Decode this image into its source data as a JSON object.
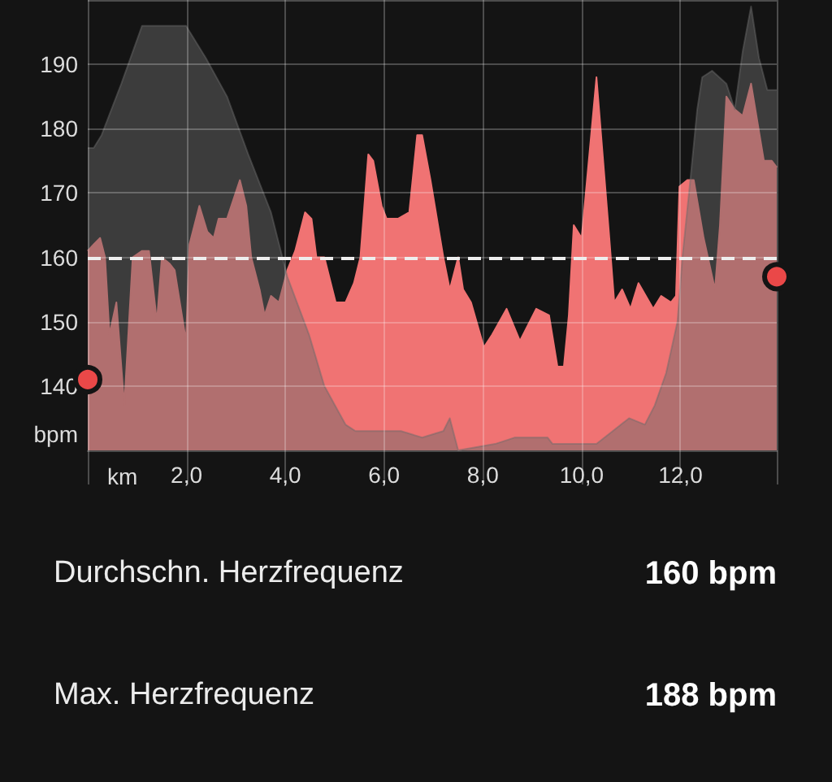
{
  "chart_data": {
    "type": "area",
    "xlabel": "km",
    "ylabel": "bpm",
    "xlim": [
      0,
      13.95
    ],
    "xticks": [
      {
        "value": 0,
        "label": null
      },
      {
        "value": 2,
        "label": "2,0"
      },
      {
        "value": 4,
        "label": "4,0"
      },
      {
        "value": 6,
        "label": "6,0"
      },
      {
        "value": 8,
        "label": "8,0"
      },
      {
        "value": 10,
        "label": "10,0"
      },
      {
        "value": 12,
        "label": "12,0"
      },
      {
        "value": 13.95,
        "label": null
      }
    ],
    "ylim": [
      130,
      200
    ],
    "yticks": [
      140,
      150,
      160,
      170,
      180,
      190,
      {
        "value": 200,
        "label": null
      }
    ],
    "grid": true,
    "series": [
      {
        "type": "area",
        "color": "#f07373",
        "x": [
          0,
          0.12,
          0.25,
          0.35,
          0.44,
          0.58,
          0.74,
          0.91,
          1.1,
          1.24,
          1.4,
          1.5,
          1.66,
          1.76,
          1.99,
          2.06,
          2.26,
          2.42,
          2.55,
          2.65,
          2.82,
          3.08,
          3.21,
          3.31,
          3.48,
          3.58,
          3.71,
          3.87,
          4.04,
          4.2,
          4.4,
          4.53,
          4.63,
          4.79,
          5.02,
          5.22,
          5.39,
          5.52,
          5.68,
          5.78,
          5.95,
          6.05,
          6.28,
          6.51,
          6.67,
          6.77,
          6.94,
          7.2,
          7.33,
          7.5,
          7.6,
          7.76,
          8.02,
          8.19,
          8.48,
          8.75,
          9.08,
          9.34,
          9.51,
          9.64,
          9.74,
          9.84,
          10.0,
          10.3,
          10.56,
          10.66,
          10.82,
          10.99,
          11.15,
          11.45,
          11.61,
          11.81,
          11.91,
          11.98,
          12.14,
          12.27,
          12.47,
          12.7,
          12.8,
          12.93,
          13.1,
          13.26,
          13.43,
          13.69,
          13.85,
          13.95
        ],
        "values": [
          161,
          162,
          163,
          160,
          148,
          153,
          137,
          160,
          161,
          161,
          150,
          160,
          159,
          158,
          147,
          162,
          168,
          164,
          163,
          166,
          166,
          172,
          168,
          160,
          155,
          151,
          154,
          153,
          158,
          161,
          167,
          166,
          160,
          160,
          153,
          153,
          156,
          160,
          176,
          175,
          168,
          166,
          166,
          167,
          179,
          179,
          172,
          160,
          155,
          160,
          155,
          153,
          146,
          148,
          152,
          147,
          152,
          151,
          143,
          143,
          151,
          165,
          163,
          188,
          163,
          153,
          155,
          152,
          156,
          152,
          154,
          153,
          154,
          171,
          172,
          172,
          163,
          155,
          165,
          185,
          183,
          182,
          187,
          175,
          175,
          174
        ]
      },
      {
        "type": "area",
        "color": "#3d3d3d",
        "x": [
          0,
          0.12,
          0.28,
          0.68,
          1.1,
          1.83,
          1.99,
          2.39,
          2.82,
          3.25,
          3.71,
          4.04,
          4.48,
          4.79,
          5.22,
          5.42,
          6.34,
          6.77,
          7.2,
          7.33,
          7.5,
          8.25,
          8.65,
          9.31,
          9.41,
          9.97,
          10.3,
          10.63,
          10.96,
          11.28,
          11.48,
          11.71,
          11.94,
          12.04,
          12.2,
          12.34,
          12.44,
          12.64,
          12.93,
          13.1,
          13.26,
          13.43,
          13.59,
          13.76,
          13.95
        ],
        "values": [
          177,
          177,
          179,
          187,
          196,
          196,
          196,
          191,
          185,
          176,
          167,
          157,
          148,
          140,
          134,
          133,
          133,
          132,
          133,
          135,
          130,
          131,
          132,
          132,
          131,
          131,
          131,
          133,
          135,
          134,
          137,
          142,
          150,
          160,
          172,
          183,
          188,
          189,
          187,
          183,
          192,
          199,
          191,
          186,
          186
        ]
      },
      {
        "type": "scatter",
        "color": "#ea4848",
        "marker": "circle",
        "x": [
          0,
          13.95
        ],
        "values": [
          141,
          157
        ]
      }
    ],
    "ref_lines": [
      {
        "axis": "y",
        "value": 160,
        "color": "#eeeeee",
        "line_style": "dashed"
      }
    ],
    "annotations": [
      "Durchschn. Herzfrequenz",
      "160 bpm",
      "Max. Herzfrequenz",
      "188 bpm"
    ]
  }
}
